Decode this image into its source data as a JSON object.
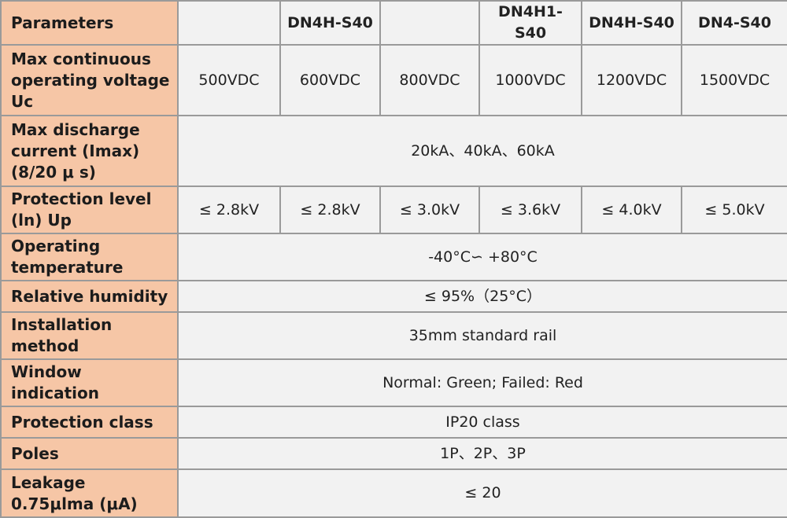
{
  "table": {
    "header": [
      "Parameters",
      null,
      "DN4H-S40",
      null,
      "DN4H1-S40",
      "DN4H-S40",
      "DN4-S40"
    ],
    "rows": [
      {
        "parameter": [
          "Max continuous",
          "operating voltage",
          "Uc"
        ],
        "values": [
          "500VDC",
          "600VDC",
          "800VDC",
          "1000VDC",
          "1200VDC",
          "1500VDC"
        ]
      },
      {
        "parameter": [
          "Max discharge",
          "current (Imax)",
          "(8/20 μ s)"
        ],
        "values": [
          "20kA、40kA、60kA"
        ]
      },
      {
        "parameter": [
          "Protection level",
          "(ln) Up"
        ],
        "values": [
          "≤ 2.8kV",
          "≤ 2.8kV",
          "≤ 3.0kV",
          "≤ 3.6kV",
          "≤ 4.0kV",
          "≤ 5.0kV"
        ]
      },
      {
        "parameter": [
          "Operating",
          "temperature"
        ],
        "values": [
          "-40°C∽ +80°C"
        ]
      },
      {
        "parameter": [
          "Relative humidity"
        ],
        "values": [
          "≤ 95%（25°C）"
        ]
      },
      {
        "parameter": [
          "Installation",
          "method"
        ],
        "values": [
          "35mm standard rail"
        ]
      },
      {
        "parameter": [
          "Window",
          "indication"
        ],
        "values": [
          "Normal: Green; Failed: Red"
        ]
      },
      {
        "parameter": [
          "Protection class"
        ],
        "values": [
          "IP20 class"
        ]
      },
      {
        "parameter": [
          "Poles"
        ],
        "values": [
          "1P、2P、3P"
        ]
      },
      {
        "parameter": [
          "Leakage",
          "0.75μlma (μA)"
        ],
        "values": [
          "≤ 20"
        ]
      }
    ]
  }
}
